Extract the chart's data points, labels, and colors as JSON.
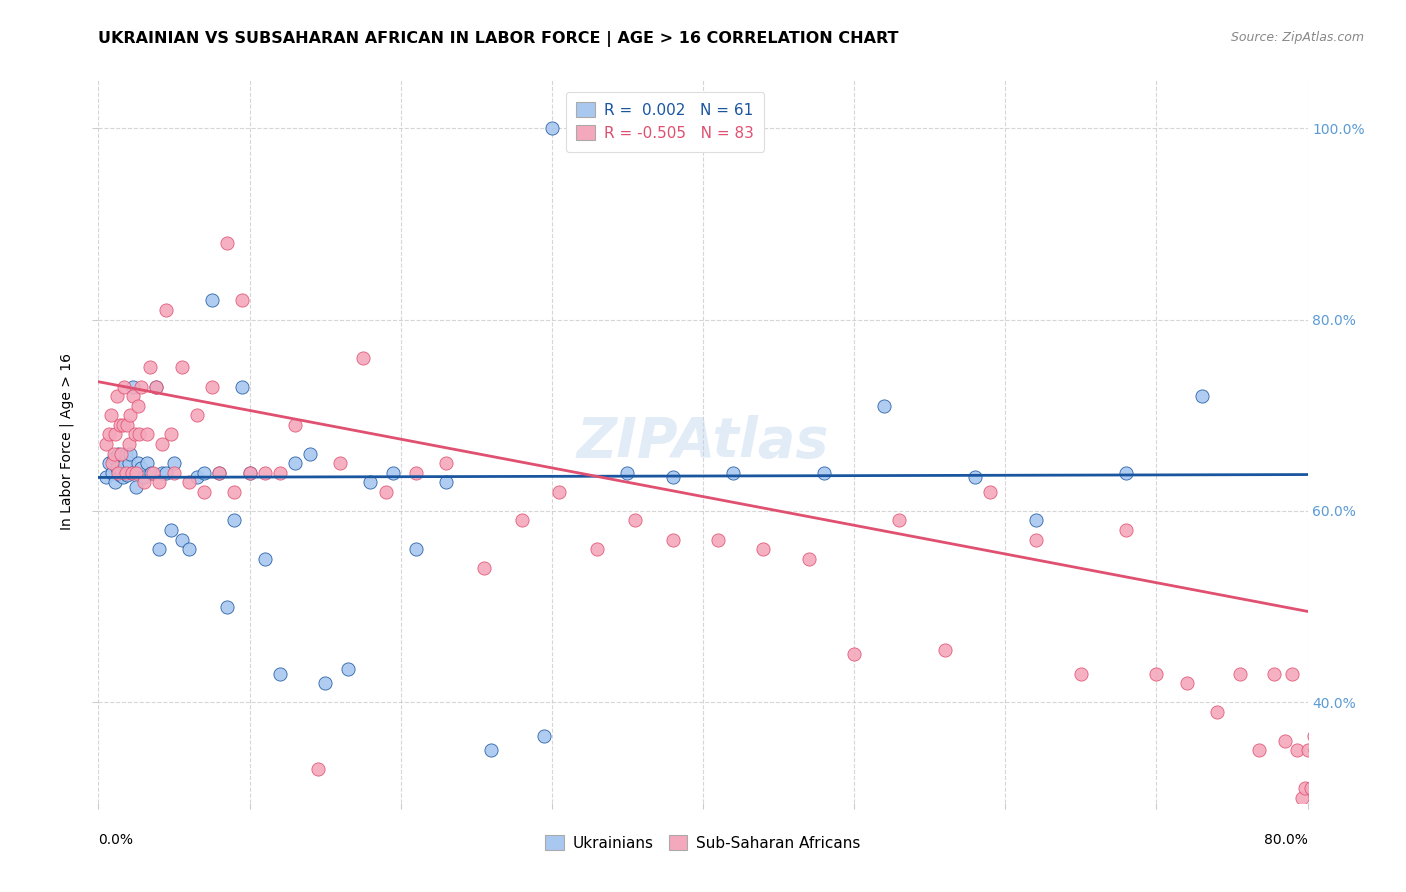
{
  "title": "UKRAINIAN VS SUBSAHARAN AFRICAN IN LABOR FORCE | AGE > 16 CORRELATION CHART",
  "source": "Source: ZipAtlas.com",
  "ylabel": "In Labor Force | Age > 16",
  "ytick_values": [
    0.4,
    0.6,
    0.8,
    1.0
  ],
  "xlim": [
    0.0,
    0.8
  ],
  "ylim": [
    0.295,
    1.05
  ],
  "R_ukrainian": 0.002,
  "N_ukrainian": 61,
  "R_subsaharan": -0.505,
  "N_subsaharan": 83,
  "color_ukrainian": "#A8C8F0",
  "color_subsaharan": "#F4A8BC",
  "color_trend_ukrainian": "#1A56A0",
  "color_trend_subsaharan": "#E05070",
  "color_right_axis": "#5B9BD5",
  "watermark": "ZIPAtlas",
  "ukr_trend_y0": 0.635,
  "ukr_trend_y1": 0.638,
  "sub_trend_y0": 0.735,
  "sub_trend_y1": 0.495,
  "ukrainian_x": [
    0.005,
    0.007,
    0.009,
    0.01,
    0.011,
    0.012,
    0.013,
    0.014,
    0.015,
    0.016,
    0.017,
    0.018,
    0.019,
    0.02,
    0.021,
    0.022,
    0.023,
    0.025,
    0.026,
    0.028,
    0.03,
    0.032,
    0.035,
    0.038,
    0.04,
    0.042,
    0.045,
    0.048,
    0.05,
    0.055,
    0.06,
    0.065,
    0.07,
    0.075,
    0.08,
    0.085,
    0.09,
    0.095,
    0.1,
    0.11,
    0.12,
    0.13,
    0.14,
    0.15,
    0.165,
    0.18,
    0.195,
    0.21,
    0.23,
    0.26,
    0.295,
    0.3,
    0.35,
    0.38,
    0.42,
    0.48,
    0.52,
    0.58,
    0.62,
    0.68,
    0.73
  ],
  "ukrainian_y": [
    0.635,
    0.65,
    0.64,
    0.655,
    0.63,
    0.645,
    0.66,
    0.638,
    0.642,
    0.635,
    0.648,
    0.658,
    0.638,
    0.65,
    0.66,
    0.64,
    0.73,
    0.625,
    0.65,
    0.645,
    0.635,
    0.65,
    0.64,
    0.73,
    0.56,
    0.64,
    0.64,
    0.58,
    0.65,
    0.57,
    0.56,
    0.635,
    0.64,
    0.82,
    0.64,
    0.5,
    0.59,
    0.73,
    0.64,
    0.55,
    0.43,
    0.65,
    0.66,
    0.42,
    0.435,
    0.63,
    0.64,
    0.56,
    0.63,
    0.35,
    0.365,
    1.0,
    0.64,
    0.635,
    0.64,
    0.64,
    0.71,
    0.635,
    0.59,
    0.64,
    0.72
  ],
  "subsaharan_x": [
    0.005,
    0.007,
    0.008,
    0.009,
    0.01,
    0.011,
    0.012,
    0.013,
    0.014,
    0.015,
    0.016,
    0.017,
    0.018,
    0.019,
    0.02,
    0.021,
    0.022,
    0.023,
    0.024,
    0.025,
    0.026,
    0.027,
    0.028,
    0.03,
    0.032,
    0.034,
    0.036,
    0.038,
    0.04,
    0.042,
    0.045,
    0.048,
    0.05,
    0.055,
    0.06,
    0.065,
    0.07,
    0.075,
    0.08,
    0.085,
    0.09,
    0.095,
    0.1,
    0.11,
    0.12,
    0.13,
    0.145,
    0.16,
    0.175,
    0.19,
    0.21,
    0.23,
    0.255,
    0.28,
    0.305,
    0.33,
    0.355,
    0.38,
    0.41,
    0.44,
    0.47,
    0.5,
    0.53,
    0.56,
    0.59,
    0.62,
    0.65,
    0.68,
    0.7,
    0.72,
    0.74,
    0.755,
    0.768,
    0.778,
    0.785,
    0.79,
    0.793,
    0.796,
    0.798,
    0.8,
    0.802,
    0.804,
    0.805
  ],
  "subsaharan_y": [
    0.67,
    0.68,
    0.7,
    0.65,
    0.66,
    0.68,
    0.72,
    0.64,
    0.69,
    0.66,
    0.69,
    0.73,
    0.64,
    0.69,
    0.67,
    0.7,
    0.64,
    0.72,
    0.68,
    0.64,
    0.71,
    0.68,
    0.73,
    0.63,
    0.68,
    0.75,
    0.64,
    0.73,
    0.63,
    0.67,
    0.81,
    0.68,
    0.64,
    0.75,
    0.63,
    0.7,
    0.62,
    0.73,
    0.64,
    0.88,
    0.62,
    0.82,
    0.64,
    0.64,
    0.64,
    0.69,
    0.33,
    0.65,
    0.76,
    0.62,
    0.64,
    0.65,
    0.54,
    0.59,
    0.62,
    0.56,
    0.59,
    0.57,
    0.57,
    0.56,
    0.55,
    0.45,
    0.59,
    0.455,
    0.62,
    0.57,
    0.43,
    0.58,
    0.43,
    0.42,
    0.39,
    0.43,
    0.35,
    0.43,
    0.36,
    0.43,
    0.35,
    0.3,
    0.31,
    0.35,
    0.31,
    0.365,
    0.35
  ],
  "background_color": "#FFFFFF",
  "grid_color": "#CCCCCC",
  "title_fontsize": 11.5,
  "axis_label_fontsize": 10,
  "tick_fontsize": 10,
  "legend_fontsize": 11,
  "source_fontsize": 9
}
